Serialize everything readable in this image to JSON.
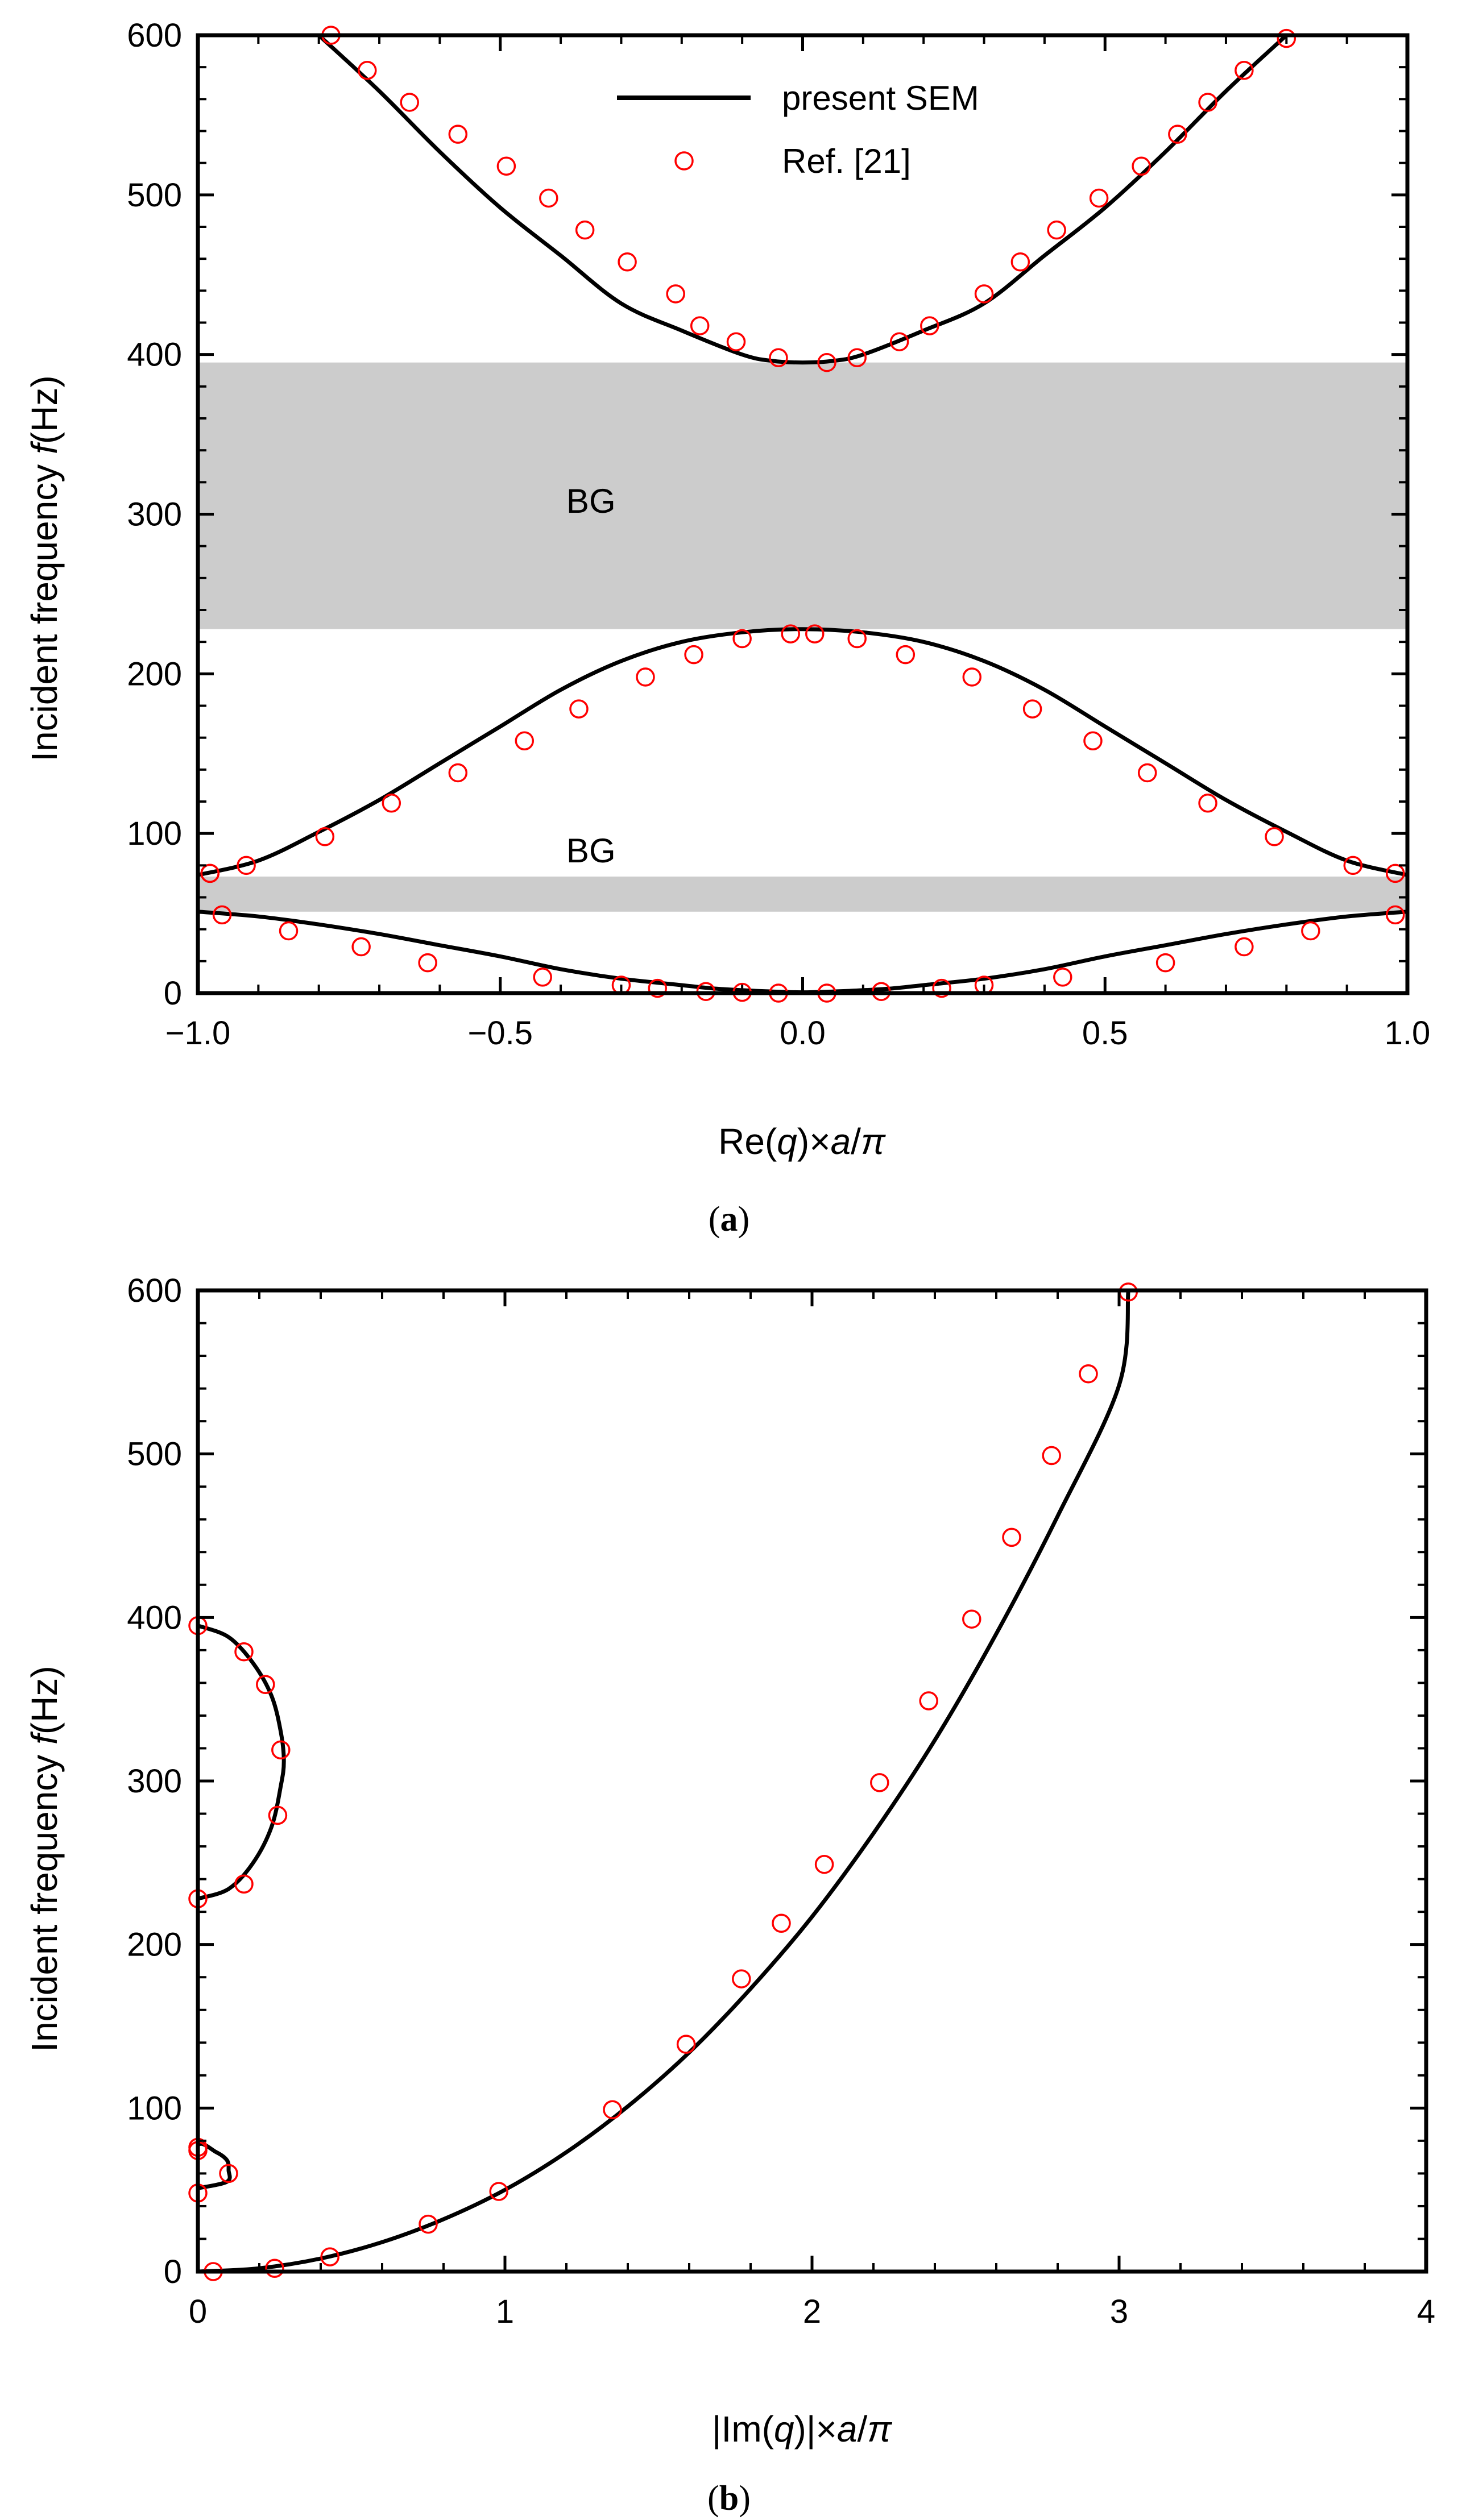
{
  "chart_data": [
    {
      "type": "line",
      "panel": "a",
      "caption_open": "(",
      "caption_letter": "a",
      "caption_close": ")",
      "title": "",
      "xlabel_prefix": "Re(",
      "xlabel_q": "q",
      "xlabel_mid": ")×",
      "xlabel_a": "a",
      "xlabel_slash": "/",
      "xlabel_pi": "π",
      "ylabel_prefix": "Incident frequency  ",
      "ylabel_f": "f",
      "ylabel_unit": "(Hz)",
      "xlim": [
        -1.0,
        1.0
      ],
      "ylim": [
        0,
        600
      ],
      "x_ticks": [
        -1.0,
        -0.5,
        0.0,
        0.5,
        1.0
      ],
      "x_tick_labels": [
        "−1.0",
        "−0.5",
        "0.0",
        "0.5",
        "1.0"
      ],
      "y_ticks": [
        0,
        100,
        200,
        300,
        400,
        500,
        600
      ],
      "y_tick_labels": [
        "0",
        "100",
        "200",
        "300",
        "400",
        "500",
        "600"
      ],
      "band_gaps": [
        {
          "label": "BG",
          "from": 228,
          "to": 395,
          "label_x": -0.35,
          "label_y": 308
        },
        {
          "label": "BG",
          "from": 51,
          "to": 73,
          "label_x": -0.35,
          "label_y": 89
        }
      ],
      "legend": {
        "position": "top-center",
        "entries": [
          {
            "label": "present SEM",
            "style": "line"
          },
          {
            "label": "Ref. [21]",
            "style": "marker"
          }
        ]
      },
      "series": [
        {
          "name": "present SEM",
          "style": "line",
          "branches": [
            {
              "x": [
                -1.0,
                -0.9,
                -0.8,
                -0.7,
                -0.6,
                -0.5,
                -0.4,
                -0.3,
                -0.2,
                -0.15,
                -0.1,
                -0.05,
                0.0,
                0.05,
                0.1,
                0.15,
                0.2,
                0.3,
                0.4,
                0.5,
                0.6,
                0.7,
                0.8,
                0.9,
                1.0
              ],
              "y": [
                51,
                48,
                43,
                37,
                30,
                23,
                15,
                9,
                5,
                3,
                1.8,
                1,
                0.5,
                1,
                1.8,
                3,
                5,
                9,
                15,
                23,
                30,
                37,
                43,
                48,
                51
              ]
            },
            {
              "x": [
                -1.0,
                -0.9,
                -0.8,
                -0.7,
                -0.6,
                -0.5,
                -0.4,
                -0.3,
                -0.2,
                -0.1,
                0.0,
                0.1,
                0.2,
                0.3,
                0.4,
                0.5,
                0.6,
                0.7,
                0.8,
                0.9,
                1.0
              ],
              "y": [
                74,
                83,
                101,
                121,
                144,
                167,
                190,
                208,
                220,
                226,
                228,
                226,
                220,
                208,
                190,
                167,
                144,
                121,
                101,
                83,
                74
              ]
            },
            {
              "x": [
                -0.8,
                -0.7,
                -0.6,
                -0.5,
                -0.4,
                -0.3,
                -0.2,
                -0.1,
                -0.05,
                0.0,
                0.05,
                0.1,
                0.2,
                0.3,
                0.4,
                0.5,
                0.6,
                0.7,
                0.8
              ],
              "y": [
                600,
                565,
                527,
                492,
                462,
                432,
                415,
                400,
                396,
                395,
                396,
                400,
                415,
                432,
                462,
                492,
                527,
                565,
                600
              ]
            }
          ]
        },
        {
          "name": "Ref. [21]",
          "style": "marker",
          "x": [
            -0.98,
            -0.96,
            -0.85,
            -0.73,
            -0.62,
            -0.43,
            -0.3,
            -0.24,
            -0.16,
            -0.1,
            -0.04,
            0.04,
            0.13,
            0.23,
            0.3,
            0.43,
            0.6,
            0.73,
            0.84,
            0.98,
            -0.98,
            -0.92,
            -0.79,
            -0.68,
            -0.57,
            -0.46,
            -0.37,
            -0.26,
            -0.18,
            -0.1,
            -0.02,
            0.02,
            0.09,
            0.17,
            0.28,
            0.38,
            0.48,
            0.57,
            0.67,
            0.78,
            0.91,
            0.98,
            -0.78,
            -0.72,
            -0.65,
            -0.57,
            -0.49,
            -0.42,
            -0.36,
            -0.29,
            -0.21,
            -0.17,
            -0.11,
            -0.04,
            0.04,
            0.09,
            0.16,
            0.21,
            0.3,
            0.36,
            0.42,
            0.49,
            0.56,
            0.62,
            0.67,
            0.73,
            0.8
          ],
          "y": [
            75,
            49,
            39,
            29,
            19,
            10,
            5,
            3,
            1,
            0.5,
            0,
            0,
            1,
            3,
            5,
            10,
            19,
            29,
            39,
            49,
            75,
            80,
            98,
            119,
            138,
            158,
            178,
            198,
            212,
            222,
            225,
            225,
            222,
            212,
            198,
            178,
            158,
            138,
            119,
            98,
            80,
            75,
            600,
            578,
            558,
            538,
            518,
            498,
            478,
            458,
            438,
            418,
            408,
            398,
            395,
            398,
            408,
            418,
            438,
            458,
            478,
            498,
            518,
            538,
            558,
            578,
            598
          ]
        }
      ]
    },
    {
      "type": "line",
      "panel": "b",
      "caption_open": "(",
      "caption_letter": "b",
      "caption_close": ")",
      "title": "",
      "xlabel_prefix": "|Im(",
      "xlabel_q": "q",
      "xlabel_mid": ")|×",
      "xlabel_a": "a",
      "xlabel_slash": "/",
      "xlabel_pi": "π",
      "ylabel_prefix": "Incident frequency  ",
      "ylabel_f": "f",
      "ylabel_unit": "(Hz)",
      "xlim": [
        0,
        4
      ],
      "ylim": [
        0,
        600
      ],
      "x_ticks": [
        0,
        1,
        2,
        3,
        4
      ],
      "x_tick_labels": [
        "0",
        "1",
        "2",
        "3",
        "4"
      ],
      "y_ticks": [
        0,
        100,
        200,
        300,
        400,
        500,
        600
      ],
      "y_tick_labels": [
        "0",
        "100",
        "200",
        "300",
        "400",
        "500",
        "600"
      ],
      "series": [
        {
          "name": "present SEM",
          "style": "line",
          "branches": [
            {
              "x": [
                0,
                0.2,
                0.4,
                0.6,
                0.8,
                1.0,
                1.2,
                1.4,
                1.6,
                1.8,
                2.0,
                2.2,
                2.4,
                2.6,
                2.8,
                3.0,
                3.03
              ],
              "y": [
                0,
                2,
                8,
                18,
                32,
                50,
                73,
                101,
                134,
                173,
                217,
                268,
                325,
                390,
                462,
                542,
                600
              ]
            },
            {
              "x": [
                0,
                0.095,
                0.1,
                0.095,
                0.06,
                0,
                0
              ],
              "y": [
                51,
                55,
                62,
                68,
                73,
                77,
                51
              ]
            },
            {
              "x": [
                0,
                0.1,
                0.18,
                0.24,
                0.27,
                0.28,
                0.27,
                0.24,
                0.18,
                0.1,
                0
              ],
              "y": [
                228,
                234,
                250,
                272,
                297,
                312,
                330,
                352,
                372,
                388,
                395
              ]
            }
          ]
        },
        {
          "name": "Ref. [21]",
          "style": "marker",
          "x": [
            0.05,
            0.25,
            0.43,
            0.75,
            0.98,
            1.35,
            1.59,
            1.77,
            1.9,
            2.04,
            2.22,
            2.38,
            2.52,
            2.65,
            2.78,
            2.9,
            3.03,
            0.0,
            0.0,
            0.1,
            0.0,
            0.0,
            0.15,
            0.26,
            0.27,
            0.22,
            0.15,
            0.0
          ],
          "y": [
            0,
            2,
            9,
            29,
            49,
            99,
            139,
            179,
            213,
            249,
            299,
            349,
            399,
            449,
            499,
            549,
            599,
            48,
            74,
            60,
            76,
            228,
            237,
            279,
            319,
            359,
            379,
            395
          ]
        }
      ]
    }
  ]
}
